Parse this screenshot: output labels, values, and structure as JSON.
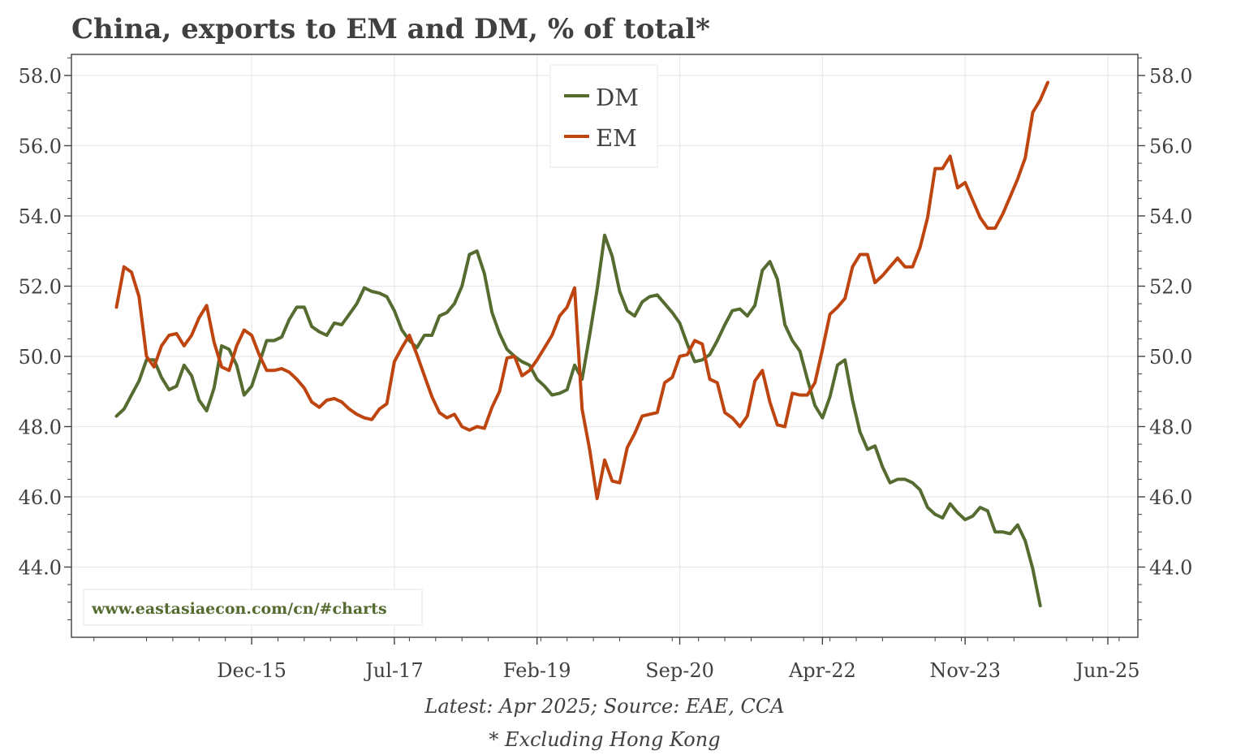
{
  "chart_data": {
    "type": "line",
    "title": "China, exports to EM and DM, % of total*",
    "footnotes": [
      "Latest: Apr 2025; Source: EAE, CCA",
      "* Excluding Hong Kong"
    ],
    "watermark": "www.eastasiaecon.com/cn/#charts",
    "xlabel": "",
    "ylabel": "",
    "ylim": [
      42.0,
      58.6
    ],
    "yticks": [
      44,
      46,
      48,
      50,
      52,
      54,
      56,
      58
    ],
    "ytick_labels": [
      "44.0",
      "46.0",
      "48.0",
      "50.0",
      "52.0",
      "54.0",
      "56.0",
      "58.0"
    ],
    "x_start": "2014-06",
    "x_end": "2025-04",
    "xlim": [
      "2013-12",
      "2025-10"
    ],
    "xticks": [
      "2015-12",
      "2017-07",
      "2019-02",
      "2020-09",
      "2022-04",
      "2023-11",
      "2025-06"
    ],
    "xtick_labels": [
      "Dec-15",
      "Jul-17",
      "Feb-19",
      "Sep-20",
      "Apr-22",
      "Nov-23",
      "Jun-25"
    ],
    "grid": true,
    "legend_position": "top-center",
    "series": [
      {
        "name": "DM",
        "color": "#556b2f",
        "values": [
          48.3,
          48.5,
          48.9,
          49.3,
          49.9,
          49.9,
          49.4,
          49.05,
          49.15,
          49.75,
          49.45,
          48.75,
          48.45,
          49.1,
          50.3,
          50.2,
          49.75,
          48.9,
          49.15,
          49.8,
          50.45,
          50.45,
          50.55,
          51.05,
          51.4,
          51.4,
          50.85,
          50.7,
          50.6,
          50.95,
          50.9,
          51.2,
          51.5,
          51.95,
          51.85,
          51.8,
          51.7,
          51.3,
          50.75,
          50.45,
          50.25,
          50.6,
          50.6,
          51.15,
          51.25,
          51.5,
          52.0,
          52.9,
          53.0,
          52.35,
          51.25,
          50.65,
          50.2,
          50.0,
          49.85,
          49.75,
          49.35,
          49.15,
          48.9,
          48.95,
          49.05,
          49.75,
          49.35,
          50.6,
          51.9,
          53.45,
          52.85,
          51.85,
          51.3,
          51.15,
          51.55,
          51.7,
          51.75,
          51.5,
          51.25,
          50.95,
          50.35,
          49.85,
          49.9,
          50.05,
          50.45,
          50.9,
          51.3,
          51.35,
          51.15,
          51.45,
          52.45,
          52.7,
          52.2,
          50.9,
          50.45,
          50.15,
          49.35,
          48.6,
          48.25,
          48.85,
          49.75,
          49.9,
          48.75,
          47.85,
          47.35,
          47.45,
          46.85,
          46.4,
          46.5,
          46.5,
          46.4,
          46.2,
          45.7,
          45.5,
          45.4,
          45.8,
          45.55,
          45.35,
          45.45,
          45.7,
          45.6,
          45.0,
          45.0,
          44.95,
          45.2,
          44.75,
          43.95,
          42.9
        ]
      },
      {
        "name": "EM",
        "color": "#bf4510",
        "values": [
          51.4,
          52.55,
          52.4,
          51.7,
          50.0,
          49.7,
          50.3,
          50.6,
          50.65,
          50.3,
          50.6,
          51.1,
          51.45,
          50.4,
          49.7,
          49.6,
          50.3,
          50.75,
          50.6,
          50.05,
          49.6,
          49.6,
          49.65,
          49.55,
          49.35,
          49.1,
          48.7,
          48.55,
          48.75,
          48.8,
          48.7,
          48.5,
          48.35,
          48.25,
          48.2,
          48.5,
          48.65,
          49.85,
          50.25,
          50.6,
          50.05,
          49.45,
          48.85,
          48.4,
          48.25,
          48.35,
          48.0,
          47.9,
          48.0,
          47.95,
          48.55,
          49.0,
          49.95,
          50.0,
          49.45,
          49.6,
          49.9,
          50.25,
          50.6,
          51.15,
          51.4,
          51.95,
          48.5,
          47.35,
          45.95,
          47.05,
          46.45,
          46.4,
          47.4,
          47.8,
          48.3,
          48.35,
          48.4,
          49.25,
          49.4,
          50.0,
          50.05,
          50.45,
          50.35,
          49.35,
          49.25,
          48.4,
          48.25,
          48.0,
          48.3,
          49.3,
          49.6,
          48.7,
          48.05,
          48.0,
          48.95,
          48.9,
          48.9,
          49.25,
          50.2,
          51.2,
          51.4,
          51.65,
          52.55,
          52.9,
          52.9,
          52.1,
          52.3,
          52.55,
          52.8,
          52.55,
          52.55,
          53.1,
          53.95,
          55.35,
          55.35,
          55.7,
          54.8,
          54.95,
          54.45,
          53.95,
          53.65,
          53.65,
          54.05,
          54.55,
          55.05,
          55.65,
          56.95,
          57.3,
          57.8
        ]
      }
    ]
  }
}
